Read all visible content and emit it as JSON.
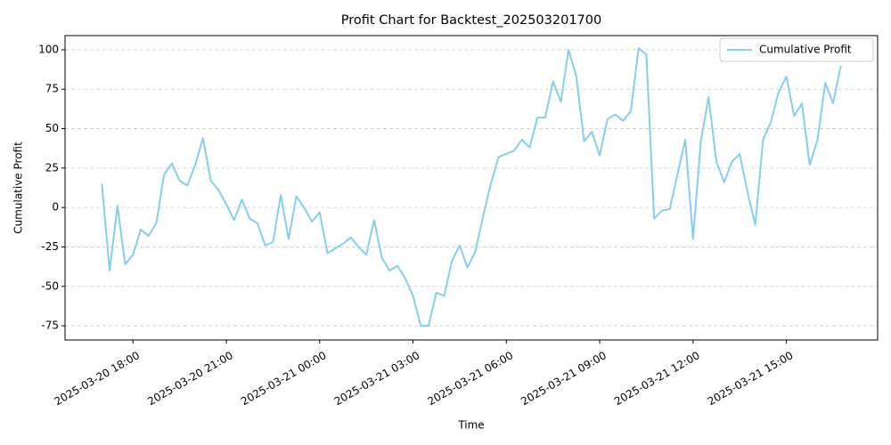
{
  "chart_data": {
    "type": "line",
    "title": "Profit Chart for Backtest_202503201700",
    "x_label": "Time",
    "y_label": "Cumulative Profit",
    "x": [
      "2025-03-20 17:00",
      "2025-03-20 17:15",
      "2025-03-20 17:30",
      "2025-03-20 17:45",
      "2025-03-20 18:00",
      "2025-03-20 18:15",
      "2025-03-20 18:30",
      "2025-03-20 18:45",
      "2025-03-20 19:00",
      "2025-03-20 19:15",
      "2025-03-20 19:30",
      "2025-03-20 19:45",
      "2025-03-20 20:00",
      "2025-03-20 20:15",
      "2025-03-20 20:30",
      "2025-03-20 20:45",
      "2025-03-20 21:00",
      "2025-03-20 21:15",
      "2025-03-20 21:30",
      "2025-03-20 21:45",
      "2025-03-20 22:00",
      "2025-03-20 22:15",
      "2025-03-20 22:30",
      "2025-03-20 22:45",
      "2025-03-20 23:00",
      "2025-03-20 23:15",
      "2025-03-20 23:30",
      "2025-03-20 23:45",
      "2025-03-21 00:00",
      "2025-03-21 00:15",
      "2025-03-21 00:30",
      "2025-03-21 00:45",
      "2025-03-21 01:00",
      "2025-03-21 01:15",
      "2025-03-21 01:30",
      "2025-03-21 01:45",
      "2025-03-21 02:00",
      "2025-03-21 02:15",
      "2025-03-21 02:30",
      "2025-03-21 02:45",
      "2025-03-21 03:00",
      "2025-03-21 03:15",
      "2025-03-21 03:30",
      "2025-03-21 03:45",
      "2025-03-21 04:00",
      "2025-03-21 04:15",
      "2025-03-21 04:30",
      "2025-03-21 04:45",
      "2025-03-21 05:00",
      "2025-03-21 05:15",
      "2025-03-21 05:30",
      "2025-03-21 05:45",
      "2025-03-21 06:00",
      "2025-03-21 06:15",
      "2025-03-21 06:30",
      "2025-03-21 06:45",
      "2025-03-21 07:00",
      "2025-03-21 07:15",
      "2025-03-21 07:30",
      "2025-03-21 07:45",
      "2025-03-21 08:00",
      "2025-03-21 08:15",
      "2025-03-21 08:30",
      "2025-03-21 08:45",
      "2025-03-21 09:00",
      "2025-03-21 09:15",
      "2025-03-21 09:30",
      "2025-03-21 09:45",
      "2025-03-21 10:00",
      "2025-03-21 10:15",
      "2025-03-21 10:30",
      "2025-03-21 10:45",
      "2025-03-21 11:00",
      "2025-03-21 11:15",
      "2025-03-21 11:30",
      "2025-03-21 11:45",
      "2025-03-21 12:00",
      "2025-03-21 12:15",
      "2025-03-21 12:30",
      "2025-03-21 12:45",
      "2025-03-21 13:00",
      "2025-03-21 13:15",
      "2025-03-21 13:30",
      "2025-03-21 13:45",
      "2025-03-21 14:00",
      "2025-03-21 14:15",
      "2025-03-21 14:30",
      "2025-03-21 14:45",
      "2025-03-21 15:00",
      "2025-03-21 15:15",
      "2025-03-21 15:30",
      "2025-03-21 15:45",
      "2025-03-21 16:00",
      "2025-03-21 16:15",
      "2025-03-21 16:30",
      "2025-03-21 16:45"
    ],
    "series": [
      {
        "name": "Cumulative Profit",
        "color": "#87ceeb",
        "values": [
          15,
          -40,
          1,
          -36,
          -30,
          -14,
          -18,
          -10,
          21,
          28,
          17,
          14,
          27,
          44,
          17,
          11,
          2,
          -8,
          5,
          -7,
          -10,
          -24,
          -22,
          8,
          -20,
          7,
          0,
          -9,
          -3,
          -29,
          -26,
          -23,
          -19,
          -25,
          -30,
          -8,
          -32,
          -40,
          -37,
          -45,
          -56,
          -75,
          -75,
          -54,
          -56,
          -34,
          -24,
          -38,
          -28,
          -6,
          15,
          32,
          34,
          36,
          43,
          38,
          57,
          57,
          80,
          67,
          100,
          83,
          42,
          48,
          33,
          56,
          59,
          55,
          61,
          101,
          97,
          -7,
          -2,
          -1,
          21,
          43,
          -20,
          42,
          70,
          29,
          16,
          29,
          34,
          10,
          -11,
          43,
          54,
          73,
          83,
          58,
          66,
          27,
          43,
          79,
          66,
          90
        ]
      }
    ],
    "xlim": [
      "2025-03-20 15:49",
      "2025-03-21 17:56"
    ],
    "xticks": [
      "2025-03-20 18:00",
      "2025-03-20 21:00",
      "2025-03-21 00:00",
      "2025-03-21 03:00",
      "2025-03-21 06:00",
      "2025-03-21 09:00",
      "2025-03-21 12:00",
      "2025-03-21 15:00"
    ],
    "ylim": [
      -84,
      109
    ],
    "yticks": [
      -75,
      -50,
      -25,
      0,
      25,
      50,
      75,
      100
    ],
    "grid": "y",
    "legend": "upper right"
  }
}
